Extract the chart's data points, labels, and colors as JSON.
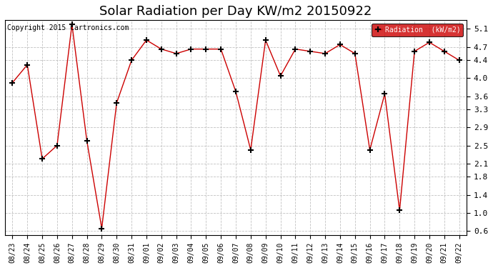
{
  "title": "Solar Radiation per Day KW/m2 20150922",
  "copyright": "Copyright 2015 Cartronics.com",
  "legend_label": "Radiation  (kW/m2)",
  "labels": [
    "08/23",
    "08/24",
    "08/25",
    "08/26",
    "08/27",
    "08/28",
    "08/29",
    "08/30",
    "08/31",
    "09/01",
    "09/02",
    "09/03",
    "09/04",
    "09/05",
    "09/06",
    "09/07",
    "09/08",
    "09/09",
    "09/10",
    "09/11",
    "09/12",
    "09/13",
    "09/14",
    "09/15",
    "09/16",
    "09/17",
    "09/18",
    "09/19",
    "09/20",
    "09/21",
    "09/22"
  ],
  "values": [
    3.9,
    4.3,
    2.2,
    2.5,
    5.2,
    2.6,
    0.65,
    3.45,
    4.4,
    4.85,
    4.65,
    4.55,
    4.65,
    4.65,
    4.65,
    3.7,
    2.4,
    4.85,
    4.05,
    4.65,
    4.6,
    4.55,
    4.75,
    4.55,
    2.4,
    3.65,
    1.05,
    4.6,
    4.8,
    4.6,
    4.4
  ],
  "line_color": "#cc0000",
  "marker": "+",
  "marker_color": "black",
  "marker_size": 6,
  "marker_linewidth": 1.5,
  "ylim": [
    0.5,
    5.3
  ],
  "yticks": [
    0.6,
    1.0,
    1.4,
    1.8,
    2.1,
    2.5,
    2.9,
    3.3,
    3.6,
    4.0,
    4.4,
    4.7,
    5.1
  ],
  "background_color": "#ffffff",
  "plot_bg_color": "#ffffff",
  "grid_color": "#bbbbbb",
  "title_fontsize": 13,
  "title_font": "DejaVu Sans",
  "tick_fontsize": 7,
  "legend_bg": "#cc0000",
  "legend_text_color": "#ffffff",
  "copyright_fontsize": 7,
  "figwidth": 6.9,
  "figheight": 3.75,
  "dpi": 100
}
